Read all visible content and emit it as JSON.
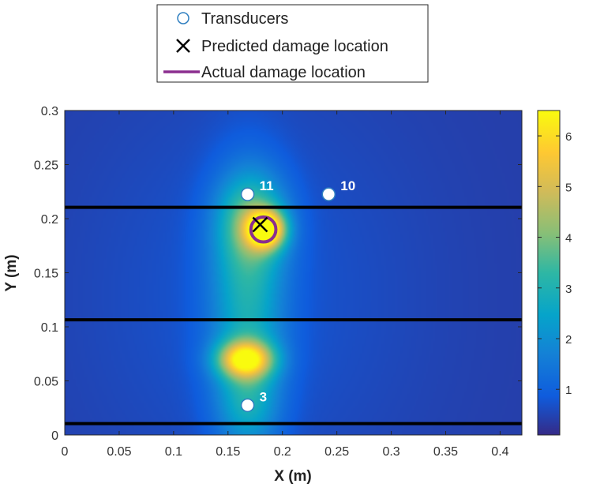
{
  "chart_data": {
    "type": "heatmap",
    "xlabel": "X (m)",
    "ylabel": "Y (m)",
    "xlim": [
      0,
      0.42
    ],
    "ylim": [
      0,
      0.3
    ],
    "x_ticks": [
      "0",
      "0.05",
      "0.1",
      "0.15",
      "0.2",
      "0.25",
      "0.3",
      "0.35",
      "0.4"
    ],
    "x_tick_values": [
      0,
      0.05,
      0.1,
      0.15,
      0.2,
      0.25,
      0.3,
      0.35,
      0.4
    ],
    "y_ticks": [
      "0",
      "0.05",
      "0.1",
      "0.15",
      "0.2",
      "0.25",
      "0.3"
    ],
    "y_tick_values": [
      0,
      0.05,
      0.1,
      0.15,
      0.2,
      0.25,
      0.3
    ],
    "colorbar": {
      "range": [
        0.1,
        6.5
      ],
      "ticks": [
        "1",
        "2",
        "3",
        "4",
        "5",
        "6"
      ],
      "tick_values": [
        1,
        2,
        3,
        4,
        5,
        6
      ],
      "colormap": "parula"
    },
    "legend": {
      "placement": "top-center",
      "entries": [
        "Transducers",
        "Predicted damage location",
        "Actual damage location"
      ]
    },
    "transducers": [
      {
        "label": "11",
        "x": 0.168,
        "y": 0.2225
      },
      {
        "label": "10",
        "x": 0.2425,
        "y": 0.2225
      },
      {
        "label": "3",
        "x": 0.168,
        "y": 0.0275
      }
    ],
    "predicted_damage": {
      "x": 0.1795,
      "y": 0.1945
    },
    "actual_damage": {
      "x": 0.1825,
      "y": 0.19,
      "radius": 0.0115
    },
    "horizontal_lines_y": [
      0.2105,
      0.1065,
      0.0105
    ],
    "heat_field": {
      "background": 0.4,
      "peaks": [
        {
          "x": 0.185,
          "y": 0.19,
          "sx": 0.012,
          "sy": 0.012,
          "amp": 5.4
        },
        {
          "x": 0.172,
          "y": 0.2,
          "sx": 0.022,
          "sy": 0.03,
          "amp": 2.2
        },
        {
          "x": 0.166,
          "y": 0.07,
          "sx": 0.018,
          "sy": 0.012,
          "amp": 4.6
        },
        {
          "x": 0.168,
          "y": 0.13,
          "sx": 0.024,
          "sy": 0.07,
          "amp": 2.2
        },
        {
          "x": 0.168,
          "y": 0.03,
          "sx": 0.02,
          "sy": 0.03,
          "amp": 1.6
        }
      ]
    },
    "colors": {
      "background_field": "#2e3b9c",
      "line": "#000000",
      "actual_damage": "#8b2e8f",
      "transducer_face": "#ffffff",
      "transducer_edge": "#2f7fc0",
      "transducer_label": "#ffffff"
    }
  }
}
